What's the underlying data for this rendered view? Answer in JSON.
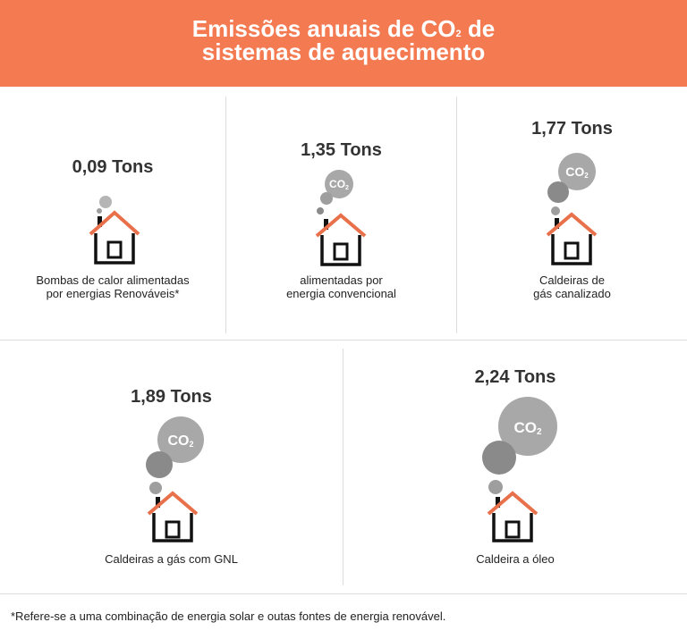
{
  "header": {
    "title_line1_prefix": "Emissões anuais de CO",
    "title_subscript": "2",
    "title_line1_suffix": " de",
    "title_line2": "sistemas de aquecimento"
  },
  "colors": {
    "header_bg": "#f47a52",
    "roof": "#e8704a",
    "house": "#111111",
    "smoke_dark": "#8a8a8a",
    "smoke_mid": "#9e9e9e",
    "smoke_light": "#b5b5b5"
  },
  "icons": [
    "house-icon",
    "smoke-puff-icon",
    "co2-bubble-icon"
  ],
  "chart_data": {
    "type": "pictogram",
    "unit": "Tons",
    "categories": [
      "Bombas de calor alimentadas por energias Renováveis*",
      "alimentadas por energia convencional",
      "Caldeiras de gás canalizado",
      "Caldeiras a gás com GNL",
      "Caldeira a óleo"
    ],
    "values": [
      0.09,
      1.35,
      1.77,
      1.89,
      2.24
    ]
  },
  "panels": [
    {
      "value_label": "0,09 Tons",
      "label_lines": [
        "Bombas de calor alimentadas",
        "por energias Renováveis*"
      ],
      "bubble_text": "",
      "bubble_sub": ""
    },
    {
      "value_label": "1,35 Tons",
      "label_lines": [
        "alimentadas por",
        "energia convencional"
      ],
      "bubble_text": "CO",
      "bubble_sub": "2"
    },
    {
      "value_label": "1,77 Tons",
      "label_lines": [
        "Caldeiras de",
        "gás canalizado"
      ],
      "bubble_text": "CO",
      "bubble_sub": "2"
    },
    {
      "value_label": "1,89 Tons",
      "label_lines": [
        "Caldeiras a gás com GNL"
      ],
      "bubble_text": "CO",
      "bubble_sub": "2"
    },
    {
      "value_label": "2,24 Tons",
      "label_lines": [
        "Caldeira a óleo"
      ],
      "bubble_text": "CO",
      "bubble_sub": "2"
    }
  ],
  "footnote": "*Refere-se a uma combinação de energia solar e outas fontes de energia renovável."
}
